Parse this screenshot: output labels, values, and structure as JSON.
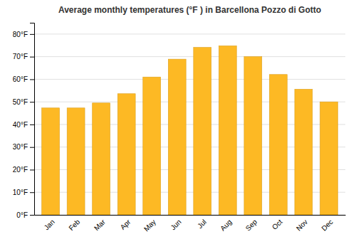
{
  "chart_data": {
    "type": "bar",
    "title": "Average monthly temperatures (°F ) in Barcellona Pozzo di Gotto",
    "categories": [
      "Jan",
      "Feb",
      "Mar",
      "Apr",
      "May",
      "Jun",
      "Jul",
      "Aug",
      "Sep",
      "Oct",
      "Nov",
      "Dec"
    ],
    "values": [
      47.3,
      47.3,
      49.5,
      53.6,
      61.0,
      68.9,
      74.1,
      74.8,
      70.0,
      62.1,
      55.6,
      50.0
    ],
    "color": "#FDB924",
    "ylim": [
      0,
      85
    ],
    "yticks": [
      {
        "value": 0,
        "label": "0°F"
      },
      {
        "value": 10,
        "label": "10°F"
      },
      {
        "value": 20,
        "label": "20°F"
      },
      {
        "value": 30,
        "label": "30°F"
      },
      {
        "value": 40,
        "label": "40°F"
      },
      {
        "value": 50,
        "label": "50°F"
      },
      {
        "value": 60,
        "label": "60°F"
      },
      {
        "value": 70,
        "label": "70°F"
      },
      {
        "value": 80,
        "label": "80°F"
      }
    ],
    "grid": true
  }
}
